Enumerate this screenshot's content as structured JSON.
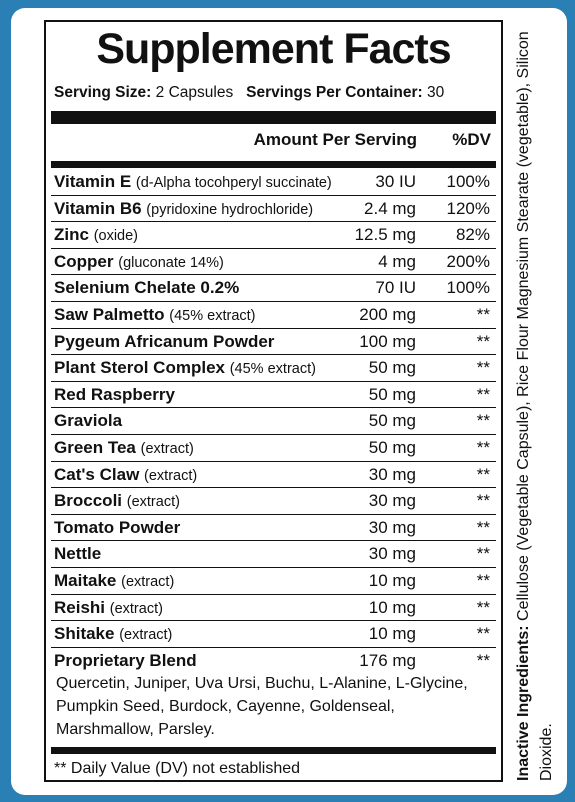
{
  "title": "Supplement Facts",
  "serving": {
    "size_label": "Serving Size:",
    "size_value": "2 Capsules",
    "per_container_label": "Servings Per Container:",
    "per_container_value": "30"
  },
  "header": {
    "amount": "Amount Per Serving",
    "dv": "%DV"
  },
  "rows": [
    {
      "name": "Vitamin E",
      "sub": "(d-Alpha tocohperyl succinate)",
      "amount": "30 IU",
      "dv": "100%"
    },
    {
      "name": "Vitamin B6",
      "sub": "(pyridoxine hydrochloride)",
      "amount": "2.4 mg",
      "dv": "120%"
    },
    {
      "name": "Zinc",
      "sub": "(oxide)",
      "amount": "12.5 mg",
      "dv": "82%"
    },
    {
      "name": "Copper",
      "sub": "(gluconate 14%)",
      "amount": "4 mg",
      "dv": "200%"
    },
    {
      "name": "Selenium Chelate 0.2%",
      "sub": "",
      "amount": "70 IU",
      "dv": "100%"
    },
    {
      "name": "Saw Palmetto",
      "sub": "(45% extract)",
      "amount": "200 mg",
      "dv": "**"
    },
    {
      "name": "Pygeum Africanum Powder",
      "sub": "",
      "amount": "100 mg",
      "dv": "**"
    },
    {
      "name": "Plant Sterol Complex",
      "sub": "(45% extract)",
      "amount": "50 mg",
      "dv": "**"
    },
    {
      "name": "Red Raspberry",
      "sub": "",
      "amount": "50 mg",
      "dv": "**"
    },
    {
      "name": "Graviola",
      "sub": "",
      "amount": "50 mg",
      "dv": "**"
    },
    {
      "name": "Green Tea",
      "sub": "(extract)",
      "amount": "50 mg",
      "dv": "**"
    },
    {
      "name": "Cat's Claw",
      "sub": "(extract)",
      "amount": "30 mg",
      "dv": "**"
    },
    {
      "name": "Broccoli",
      "sub": "(extract)",
      "amount": "30 mg",
      "dv": "**"
    },
    {
      "name": "Tomato Powder",
      "sub": "",
      "amount": "30 mg",
      "dv": "**"
    },
    {
      "name": "Nettle",
      "sub": "",
      "amount": "30 mg",
      "dv": "**"
    },
    {
      "name": "Maitake",
      "sub": "(extract)",
      "amount": "10 mg",
      "dv": "**"
    },
    {
      "name": "Reishi",
      "sub": "(extract)",
      "amount": "10 mg",
      "dv": "**"
    },
    {
      "name": "Shitake",
      "sub": "(extract)",
      "amount": "10 mg",
      "dv": "**"
    },
    {
      "name": "Proprietary Blend",
      "sub": "",
      "amount": "176 mg",
      "dv": "**"
    }
  ],
  "blend_ingredients": "Quercetin, Juniper, Uva Ursi, Buchu, L-Alanine, L-Glycine, Pumpkin Seed, Burdock, Cayenne, Goldenseal, Marshmallow, Parsley.",
  "footnote": "** Daily Value (DV) not established",
  "inactive": {
    "label": "Inactive Ingredients:",
    "text": "Cellulose (Vegetable Capsule), Rice Flour Magnesium Stearate (vegetable), Silicon Dioxide."
  },
  "colors": {
    "background": "#2a7fb4",
    "ink": "#111111"
  }
}
